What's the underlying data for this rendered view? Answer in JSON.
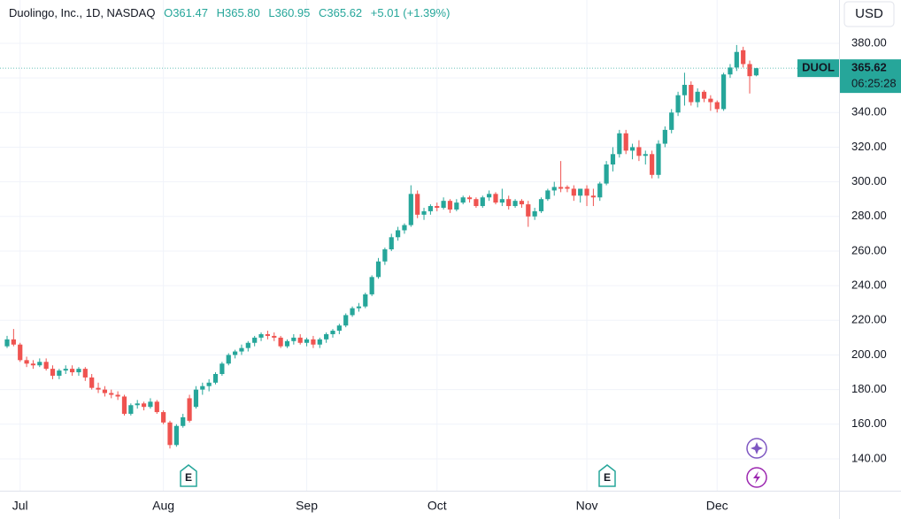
{
  "chart_data": {
    "type": "candlestick",
    "title": "Duolingo, Inc., 1D, NASDAQ",
    "legend_values": [
      "O361.47",
      "H365.80",
      "L360.95",
      "C365.62",
      "+5.01 (+1.39%)"
    ],
    "currency": "USD",
    "symbol": "DUOL",
    "price_label": "365.62",
    "countdown": "06:25:28",
    "event_markers": [
      "E",
      "E"
    ],
    "up_color": "#26a69a",
    "down_color": "#ef5350",
    "ylim": [
      121.6,
      405
    ],
    "yticks": [
      {
        "value": 140,
        "label": "140.00"
      },
      {
        "value": 160,
        "label": "160.00"
      },
      {
        "value": 180,
        "label": "180.00"
      },
      {
        "value": 200,
        "label": "200.00"
      },
      {
        "value": 220,
        "label": "220.00"
      },
      {
        "value": 240,
        "label": "240.00"
      },
      {
        "value": 260,
        "label": "260.00"
      },
      {
        "value": 280,
        "label": "280.00"
      },
      {
        "value": 300,
        "label": "300.00"
      },
      {
        "value": 320,
        "label": "320.00"
      },
      {
        "value": 340,
        "label": "340.00"
      },
      {
        "value": 360,
        "label": "360.00"
      },
      {
        "value": 380,
        "label": "380.00"
      }
    ],
    "grid": true,
    "categories": [
      null,
      null,
      "Jul",
      null,
      null,
      null,
      null,
      null,
      null,
      null,
      null,
      null,
      null,
      null,
      null,
      null,
      null,
      null,
      null,
      null,
      null,
      null,
      null,
      null,
      "Aug",
      null,
      null,
      null,
      null,
      null,
      null,
      null,
      null,
      null,
      null,
      null,
      null,
      null,
      null,
      null,
      null,
      null,
      null,
      null,
      null,
      null,
      "Sep",
      null,
      null,
      null,
      null,
      null,
      null,
      null,
      null,
      null,
      null,
      null,
      null,
      null,
      null,
      null,
      null,
      null,
      null,
      null,
      "Oct",
      null,
      null,
      null,
      null,
      null,
      null,
      null,
      null,
      null,
      null,
      null,
      null,
      null,
      null,
      null,
      null,
      null,
      null,
      null,
      null,
      null,
      null,
      "Nov",
      null,
      null,
      null,
      null,
      null,
      null,
      null,
      null,
      null,
      null,
      null,
      null,
      null,
      null,
      null,
      null,
      null,
      null,
      null,
      "Dec",
      null,
      null,
      null,
      null,
      null,
      null
    ],
    "open": [
      205,
      209,
      206,
      197,
      195,
      194,
      196,
      192,
      188,
      191,
      192,
      190,
      192,
      187,
      181,
      180,
      178,
      177,
      176,
      166,
      171,
      172,
      170,
      173,
      167,
      161,
      148,
      159,
      175,
      170,
      180,
      182,
      184,
      189,
      195,
      200,
      202,
      204,
      207,
      210,
      212,
      211,
      210,
      205,
      208,
      210,
      207,
      209,
      206,
      209,
      212,
      214,
      217,
      223,
      227,
      228,
      235,
      245,
      254,
      261,
      268,
      272,
      275,
      293,
      281,
      283,
      286,
      285,
      289,
      284,
      288,
      291,
      290,
      286,
      291,
      293,
      288,
      290,
      286,
      289,
      287,
      280,
      283,
      290,
      295,
      297,
      297,
      296,
      292,
      296,
      292,
      291,
      299,
      310,
      316,
      328,
      318,
      320,
      315,
      316,
      304,
      322,
      330,
      340,
      350,
      356,
      346,
      352,
      348,
      346,
      342,
      362,
      366,
      376,
      368,
      361.47
    ],
    "high": [
      211,
      215,
      207,
      199,
      197,
      198,
      198,
      194,
      192,
      194,
      194,
      193,
      193,
      189,
      184,
      182,
      180,
      179,
      177,
      172,
      174,
      173,
      175,
      174,
      168,
      162,
      160,
      166,
      177,
      182,
      184,
      186,
      190,
      196,
      201,
      203,
      206,
      208,
      211,
      213,
      214,
      213,
      211,
      209,
      212,
      212,
      210,
      211,
      210,
      213,
      215,
      218,
      224,
      228,
      230,
      236,
      246,
      256,
      262,
      270,
      274,
      276,
      298,
      295,
      285,
      287,
      288,
      291,
      290,
      290,
      292,
      292,
      291,
      292,
      295,
      294,
      296,
      292,
      290,
      290,
      289,
      285,
      291,
      296,
      300,
      312,
      298,
      298,
      296,
      298,
      296,
      300,
      312,
      320,
      330,
      330,
      322,
      324,
      318,
      318,
      324,
      332,
      342,
      352,
      363,
      358,
      354,
      353,
      350,
      347,
      363,
      368,
      379,
      378,
      370,
      365.8
    ],
    "low": [
      204,
      205,
      196,
      193,
      192,
      193,
      191,
      186,
      186,
      189,
      188,
      188,
      185,
      180,
      178,
      176,
      175,
      174,
      165,
      165,
      169,
      168,
      169,
      166,
      160,
      146,
      147,
      158,
      161,
      169,
      177,
      179,
      183,
      188,
      194,
      198,
      200,
      202,
      205,
      208,
      209,
      208,
      204,
      204,
      206,
      206,
      205,
      204,
      204,
      207,
      210,
      212,
      216,
      222,
      225,
      227,
      234,
      244,
      252,
      260,
      266,
      270,
      274,
      279,
      278,
      281,
      283,
      284,
      282,
      283,
      287,
      288,
      285,
      285,
      289,
      287,
      286,
      284,
      285,
      285,
      274,
      278,
      282,
      289,
      292,
      294,
      294,
      289,
      288,
      286,
      286,
      289,
      298,
      306,
      314,
      316,
      313,
      312,
      310,
      302,
      302,
      320,
      328,
      338,
      344,
      344,
      343,
      346,
      341,
      340,
      341,
      360,
      364,
      366,
      351,
      360.95
    ],
    "close": [
      209,
      206,
      197,
      195,
      194,
      196,
      192,
      188,
      191,
      192,
      190,
      192,
      187,
      181,
      180,
      178,
      177,
      176,
      166,
      171,
      172,
      170,
      173,
      167,
      161,
      148,
      159,
      164,
      162,
      180,
      182,
      184,
      189,
      195,
      200,
      202,
      204,
      207,
      210,
      212,
      211,
      210,
      205,
      208,
      210,
      207,
      209,
      206,
      209,
      212,
      214,
      217,
      223,
      227,
      228,
      235,
      245,
      254,
      261,
      268,
      272,
      275,
      293,
      281,
      283,
      286,
      285,
      289,
      284,
      288,
      291,
      290,
      286,
      291,
      293,
      288,
      290,
      286,
      289,
      287,
      280,
      283,
      290,
      295,
      297,
      296,
      296,
      292,
      296,
      292,
      291,
      299,
      310,
      316,
      328,
      318,
      320,
      315,
      316,
      304,
      322,
      330,
      340,
      350,
      356,
      346,
      352,
      348,
      346,
      342,
      362,
      366,
      375,
      368,
      361,
      365.62
    ]
  }
}
